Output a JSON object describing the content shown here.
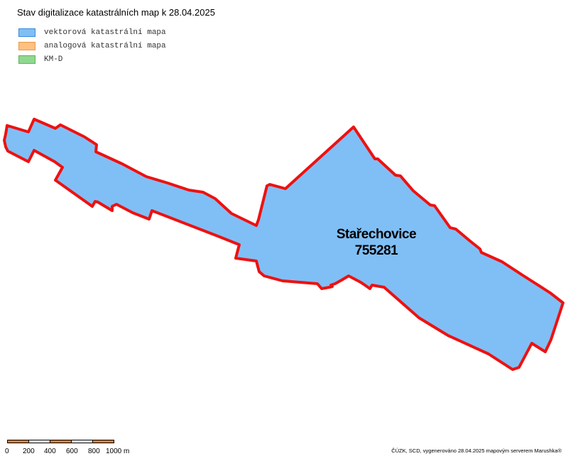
{
  "map": {
    "title": "Stav digitalizace katastrálních map k 28.04.2025",
    "legend": [
      {
        "label": "vektorová katastrální mapa",
        "color": "#80bff5",
        "border": "#3a8ad6"
      },
      {
        "label": "analogová katastrální mapa",
        "color": "#ffc080",
        "border": "#e89a4a"
      },
      {
        "label": "KM-D",
        "color": "#90d890",
        "border": "#5ab45a"
      }
    ],
    "parcel": {
      "name": "Stařechovice",
      "code": "755281",
      "fill_color": "#80bff5",
      "border_color": "#ee1111"
    },
    "scale": {
      "labels": [
        "0",
        "200",
        "400",
        "600",
        "800",
        "1000 m"
      ],
      "colors": [
        "#d9823b",
        "#ffffff",
        "#d9823b",
        "#ffffff",
        "#d9823b"
      ]
    },
    "credit": "ČÚZK, SCD, vygenerováno 28.04.2025 mapovým serverem Marushka®"
  }
}
